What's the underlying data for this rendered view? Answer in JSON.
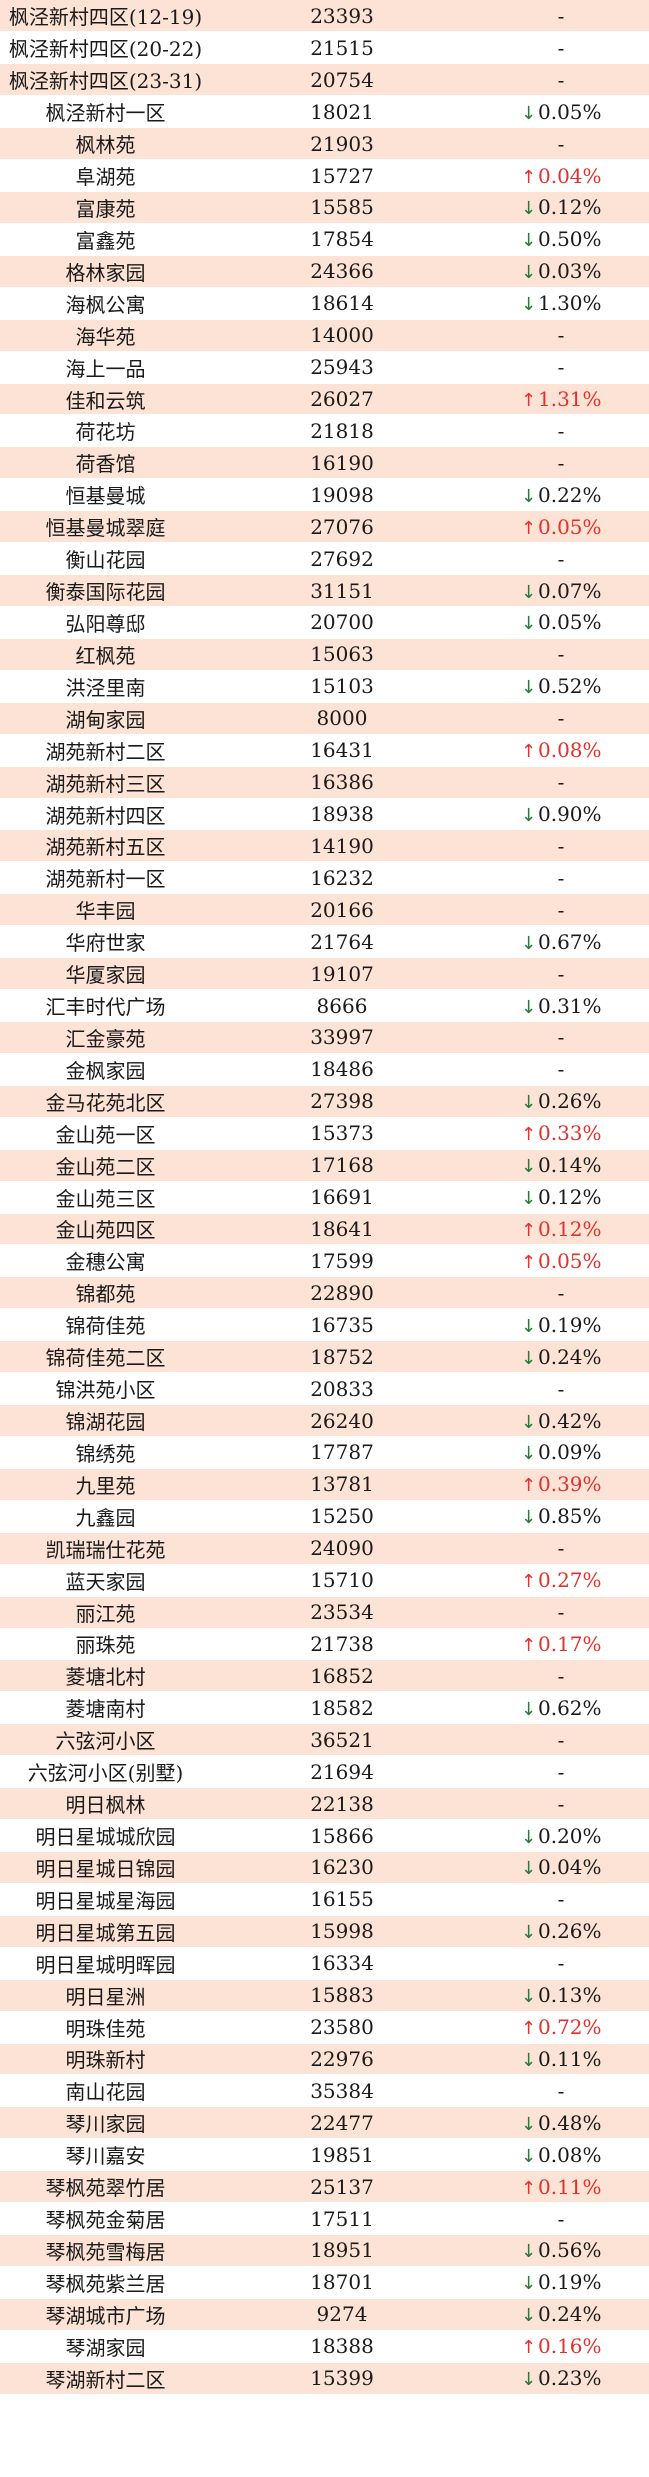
{
  "colors": {
    "shade": "#fde3d5",
    "up": "#e0312c",
    "down": "#2a7a3a"
  },
  "rows": [
    {
      "name": "枫泾新村四区(12-19)",
      "price": "23393",
      "change": "-",
      "dir": "none"
    },
    {
      "name": "枫泾新村四区(20-22)",
      "price": "21515",
      "change": "-",
      "dir": "none"
    },
    {
      "name": "枫泾新村四区(23-31)",
      "price": "20754",
      "change": "-",
      "dir": "none"
    },
    {
      "name": "枫泾新村一区",
      "price": "18021",
      "change": "0.05%",
      "dir": "down"
    },
    {
      "name": "枫林苑",
      "price": "21903",
      "change": "-",
      "dir": "none"
    },
    {
      "name": "阜湖苑",
      "price": "15727",
      "change": "0.04%",
      "dir": "up"
    },
    {
      "name": "富康苑",
      "price": "15585",
      "change": "0.12%",
      "dir": "down"
    },
    {
      "name": "富鑫苑",
      "price": "17854",
      "change": "0.50%",
      "dir": "down"
    },
    {
      "name": "格林家园",
      "price": "24366",
      "change": "0.03%",
      "dir": "down"
    },
    {
      "name": "海枫公寓",
      "price": "18614",
      "change": "1.30%",
      "dir": "down"
    },
    {
      "name": "海华苑",
      "price": "14000",
      "change": "-",
      "dir": "none"
    },
    {
      "name": "海上一品",
      "price": "25943",
      "change": "-",
      "dir": "none"
    },
    {
      "name": "佳和云筑",
      "price": "26027",
      "change": "1.31%",
      "dir": "up"
    },
    {
      "name": "荷花坊",
      "price": "21818",
      "change": "-",
      "dir": "none"
    },
    {
      "name": "荷香馆",
      "price": "16190",
      "change": "-",
      "dir": "none"
    },
    {
      "name": "恒基曼城",
      "price": "19098",
      "change": "0.22%",
      "dir": "down"
    },
    {
      "name": "恒基曼城翠庭",
      "price": "27076",
      "change": "0.05%",
      "dir": "up"
    },
    {
      "name": "衡山花园",
      "price": "27692",
      "change": "-",
      "dir": "none"
    },
    {
      "name": "衡泰国际花园",
      "price": "31151",
      "change": "0.07%",
      "dir": "down"
    },
    {
      "name": "弘阳尊邸",
      "price": "20700",
      "change": "0.05%",
      "dir": "down"
    },
    {
      "name": "红枫苑",
      "price": "15063",
      "change": "-",
      "dir": "none"
    },
    {
      "name": "洪泾里南",
      "price": "15103",
      "change": "0.52%",
      "dir": "down"
    },
    {
      "name": "湖甸家园",
      "price": "8000",
      "change": "-",
      "dir": "none"
    },
    {
      "name": "湖苑新村二区",
      "price": "16431",
      "change": "0.08%",
      "dir": "up"
    },
    {
      "name": "湖苑新村三区",
      "price": "16386",
      "change": "-",
      "dir": "none"
    },
    {
      "name": "湖苑新村四区",
      "price": "18938",
      "change": "0.90%",
      "dir": "down"
    },
    {
      "name": "湖苑新村五区",
      "price": "14190",
      "change": "-",
      "dir": "none"
    },
    {
      "name": "湖苑新村一区",
      "price": "16232",
      "change": "-",
      "dir": "none"
    },
    {
      "name": "华丰园",
      "price": "20166",
      "change": "-",
      "dir": "none"
    },
    {
      "name": "华府世家",
      "price": "21764",
      "change": "0.67%",
      "dir": "down"
    },
    {
      "name": "华厦家园",
      "price": "19107",
      "change": "-",
      "dir": "none"
    },
    {
      "name": "汇丰时代广场",
      "price": "8666",
      "change": "0.31%",
      "dir": "down"
    },
    {
      "name": "汇金豪苑",
      "price": "33997",
      "change": "-",
      "dir": "none"
    },
    {
      "name": "金枫家园",
      "price": "18486",
      "change": "-",
      "dir": "none"
    },
    {
      "name": "金马花苑北区",
      "price": "27398",
      "change": "0.26%",
      "dir": "down"
    },
    {
      "name": "金山苑一区",
      "price": "15373",
      "change": "0.33%",
      "dir": "up"
    },
    {
      "name": "金山苑二区",
      "price": "17168",
      "change": "0.14%",
      "dir": "down"
    },
    {
      "name": "金山苑三区",
      "price": "16691",
      "change": "0.12%",
      "dir": "down"
    },
    {
      "name": "金山苑四区",
      "price": "18641",
      "change": "0.12%",
      "dir": "up"
    },
    {
      "name": "金穗公寓",
      "price": "17599",
      "change": "0.05%",
      "dir": "up"
    },
    {
      "name": "锦都苑",
      "price": "22890",
      "change": "-",
      "dir": "none"
    },
    {
      "name": "锦荷佳苑",
      "price": "16735",
      "change": "0.19%",
      "dir": "down"
    },
    {
      "name": "锦荷佳苑二区",
      "price": "18752",
      "change": "0.24%",
      "dir": "down"
    },
    {
      "name": "锦洪苑小区",
      "price": "20833",
      "change": "-",
      "dir": "none"
    },
    {
      "name": "锦湖花园",
      "price": "26240",
      "change": "0.42%",
      "dir": "down"
    },
    {
      "name": "锦绣苑",
      "price": "17787",
      "change": "0.09%",
      "dir": "down"
    },
    {
      "name": "九里苑",
      "price": "13781",
      "change": "0.39%",
      "dir": "up"
    },
    {
      "name": "九鑫园",
      "price": "15250",
      "change": "0.85%",
      "dir": "down"
    },
    {
      "name": "凯瑞瑞仕花苑",
      "price": "24090",
      "change": "-",
      "dir": "none"
    },
    {
      "name": "蓝天家园",
      "price": "15710",
      "change": "0.27%",
      "dir": "up"
    },
    {
      "name": "丽江苑",
      "price": "23534",
      "change": "-",
      "dir": "none"
    },
    {
      "name": "丽珠苑",
      "price": "21738",
      "change": "0.17%",
      "dir": "up"
    },
    {
      "name": "菱塘北村",
      "price": "16852",
      "change": "-",
      "dir": "none"
    },
    {
      "name": "菱塘南村",
      "price": "18582",
      "change": "0.62%",
      "dir": "down"
    },
    {
      "name": "六弦河小区",
      "price": "36521",
      "change": "-",
      "dir": "none"
    },
    {
      "name": "六弦河小区(别墅)",
      "price": "21694",
      "change": "-",
      "dir": "none"
    },
    {
      "name": "明日枫林",
      "price": "22138",
      "change": "-",
      "dir": "none"
    },
    {
      "name": "明日星城城欣园",
      "price": "15866",
      "change": "0.20%",
      "dir": "down"
    },
    {
      "name": "明日星城日锦园",
      "price": "16230",
      "change": "0.04%",
      "dir": "down"
    },
    {
      "name": "明日星城星海园",
      "price": "16155",
      "change": "-",
      "dir": "none"
    },
    {
      "name": "明日星城第五园",
      "price": "15998",
      "change": "0.26%",
      "dir": "down"
    },
    {
      "name": "明日星城明晖园",
      "price": "16334",
      "change": "-",
      "dir": "none"
    },
    {
      "name": "明日星洲",
      "price": "15883",
      "change": "0.13%",
      "dir": "down"
    },
    {
      "name": "明珠佳苑",
      "price": "23580",
      "change": "0.72%",
      "dir": "up"
    },
    {
      "name": "明珠新村",
      "price": "22976",
      "change": "0.11%",
      "dir": "down"
    },
    {
      "name": "南山花园",
      "price": "35384",
      "change": "-",
      "dir": "none"
    },
    {
      "name": "琴川家园",
      "price": "22477",
      "change": "0.48%",
      "dir": "down"
    },
    {
      "name": "琴川嘉安",
      "price": "19851",
      "change": "0.08%",
      "dir": "down"
    },
    {
      "name": "琴枫苑翠竹居",
      "price": "25137",
      "change": "0.11%",
      "dir": "up"
    },
    {
      "name": "琴枫苑金菊居",
      "price": "17511",
      "change": "-",
      "dir": "none"
    },
    {
      "name": "琴枫苑雪梅居",
      "price": "18951",
      "change": "0.56%",
      "dir": "down"
    },
    {
      "name": "琴枫苑紫兰居",
      "price": "18701",
      "change": "0.19%",
      "dir": "down"
    },
    {
      "name": "琴湖城市广场",
      "price": "9274",
      "change": "0.24%",
      "dir": "down"
    },
    {
      "name": "琴湖家园",
      "price": "18388",
      "change": "0.16%",
      "dir": "up"
    },
    {
      "name": "琴湖新村二区",
      "price": "15399",
      "change": "0.23%",
      "dir": "down"
    }
  ]
}
